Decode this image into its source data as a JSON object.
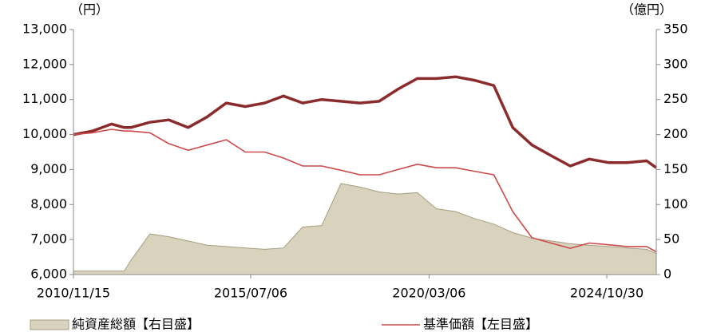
{
  "chart_data": {
    "type": "line",
    "y_label": "（円）",
    "y2_label": "（億円）",
    "x": [
      "2010/11/15",
      "2011/05/15",
      "2011/11/15",
      "2012/03/15",
      "2012/05/15",
      "2012/11/15",
      "2013/05/15",
      "2013/11/15",
      "2014/05/15",
      "2014/11/15",
      "2015/05/15",
      "2015/11/15",
      "2016/05/15",
      "2016/11/15",
      "2017/05/15",
      "2017/11/15",
      "2018/05/15",
      "2018/11/15",
      "2019/05/15",
      "2019/11/15",
      "2020/05/15",
      "2020/11/15",
      "2021/05/15",
      "2021/11/15",
      "2022/05/15",
      "2022/11/15",
      "2023/05/15",
      "2023/11/15",
      "2024/05/15",
      "2024/11/15",
      "2025/05/15",
      "2025/11/15",
      "2026/02/15"
    ],
    "series": [
      {
        "name": "純資産総額【右目盛】",
        "type": "area",
        "axis": "y2",
        "color": "#d9d3bd",
        "edge_color": "#a59d80",
        "values": [
          5,
          5,
          5,
          5,
          20,
          58,
          54,
          48,
          42,
          40,
          38,
          36,
          38,
          68,
          70,
          130,
          125,
          118,
          115,
          117,
          94,
          90,
          80,
          72,
          60,
          52,
          48,
          44,
          42,
          40,
          38,
          36,
          30
        ]
      },
      {
        "type": "line",
        "color": "#8b2b2b",
        "line_width": 3.5,
        "values": [
          10000,
          10100,
          10300,
          10200,
          10200,
          10350,
          10420,
          10200,
          10500,
          10900,
          10800,
          10900,
          11100,
          10900,
          11000,
          10950,
          10900,
          10950,
          11300,
          11600,
          11600,
          11650,
          11550,
          11400,
          10200,
          9700,
          9400,
          9100,
          9300,
          9200,
          9200,
          9250,
          9050
        ]
      },
      {
        "name": "基準価額【左目盛】",
        "type": "line",
        "color": "#cc4a4a",
        "line_width": 1.6,
        "values": [
          10000,
          10050,
          10150,
          10100,
          10100,
          10050,
          9740,
          9550,
          9700,
          9850,
          9500,
          9500,
          9330,
          9100,
          9100,
          8980,
          8850,
          8850,
          9000,
          9150,
          9050,
          9050,
          8950,
          8850,
          7800,
          7050,
          6900,
          6750,
          6900,
          6850,
          6800,
          6800,
          6650
        ]
      }
    ],
    "xlim": [
      "2010/11/15",
      "2026/02/15"
    ],
    "xticks": [
      "2010/11/15",
      "2015/07/06",
      "2020/03/06",
      "2024/10/30"
    ],
    "ylim": [
      6000,
      13000
    ],
    "yticks": [
      {
        "value": 6000,
        "label": "6,000"
      },
      {
        "value": 7000,
        "label": "7,000"
      },
      {
        "value": 8000,
        "label": "8,000"
      },
      {
        "value": 9000,
        "label": "9,000"
      },
      {
        "value": 10000,
        "label": "10,000"
      },
      {
        "value": 11000,
        "label": "11,000"
      },
      {
        "value": 12000,
        "label": "12,000"
      },
      {
        "value": 13000,
        "label": "13,000"
      }
    ],
    "y2lim": [
      0,
      350
    ],
    "y2ticks": [
      0,
      50,
      100,
      150,
      200,
      250,
      300,
      350
    ],
    "grid": false,
    "legend": "bottom"
  }
}
